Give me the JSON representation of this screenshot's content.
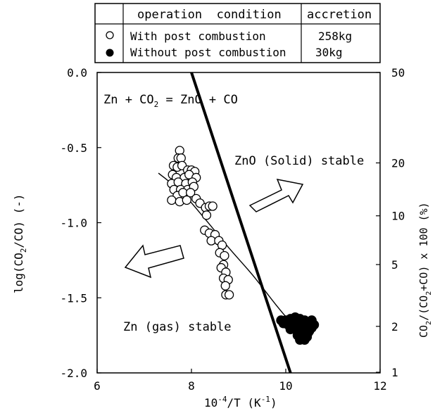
{
  "chart_data": {
    "type": "scatter",
    "title": "",
    "legend_table": {
      "headers": [
        "operation  condition",
        "accretion"
      ],
      "rows": [
        {
          "marker": "open-circle",
          "condition": "With post combustion",
          "accretion": "258kg"
        },
        {
          "marker": "filled-circle",
          "condition": "Without post combustion",
          "accretion": "30kg"
        }
      ]
    },
    "x_axis": {
      "label_base": "10",
      "label_exp": "-4",
      "label_mid": "/T (K",
      "label_exp2": "-1",
      "label_end": ")",
      "range": [
        6,
        12
      ],
      "ticks": [
        "6",
        "8",
        "10",
        "12"
      ]
    },
    "y_axis_left": {
      "label_pre": "log(CO",
      "label_sub": "2",
      "label_post": "/CO) (-)",
      "range": [
        -2.0,
        0.0
      ],
      "ticks": [
        "0.0",
        "-0.5",
        "-1.0",
        "-1.5",
        "-2.0"
      ]
    },
    "y_axis_right": {
      "label_pre": "CO",
      "label_sub1": "2",
      "label_mid": "/(CO",
      "label_sub2": "2",
      "label_post": "+CO) x 100 (%)",
      "ticks": [
        {
          "label": "50",
          "value": 50
        },
        {
          "label": "20",
          "value": 20
        },
        {
          "label": "10",
          "value": 10
        },
        {
          "label": "5",
          "value": 5
        },
        {
          "label": "2",
          "value": 2
        },
        {
          "label": "1",
          "value": 1
        }
      ]
    },
    "equilibrium_line": {
      "label_pre": "Zn + CO",
      "label_sub": "2",
      "label_post": " = ZnO + CO",
      "points": [
        [
          8.0,
          0.0
        ],
        [
          10.1,
          -2.0
        ]
      ]
    },
    "trend_curve": [
      [
        7.3,
        -0.67
      ],
      [
        7.8,
        -0.8
      ],
      [
        8.3,
        -0.98
      ],
      [
        8.8,
        -1.17
      ],
      [
        9.3,
        -1.35
      ],
      [
        9.8,
        -1.55
      ],
      [
        10.2,
        -1.7
      ]
    ],
    "region_labels": {
      "solid": "ZnO (Solid) stable",
      "gas": "Zn (gas) stable"
    },
    "series": [
      {
        "name": "With post combustion",
        "marker": "open-circle",
        "points": [
          [
            7.75,
            -0.52
          ],
          [
            7.72,
            -0.57
          ],
          [
            7.78,
            -0.57
          ],
          [
            7.62,
            -0.62
          ],
          [
            7.7,
            -0.63
          ],
          [
            7.8,
            -0.62
          ],
          [
            7.92,
            -0.65
          ],
          [
            8.0,
            -0.65
          ],
          [
            8.07,
            -0.66
          ],
          [
            7.6,
            -0.68
          ],
          [
            7.68,
            -0.7
          ],
          [
            7.85,
            -0.7
          ],
          [
            7.95,
            -0.68
          ],
          [
            8.1,
            -0.7
          ],
          [
            7.58,
            -0.74
          ],
          [
            7.72,
            -0.73
          ],
          [
            7.88,
            -0.74
          ],
          [
            8.02,
            -0.73
          ],
          [
            7.63,
            -0.78
          ],
          [
            7.77,
            -0.78
          ],
          [
            7.92,
            -0.78
          ],
          [
            8.05,
            -0.76
          ],
          [
            7.7,
            -0.82
          ],
          [
            7.82,
            -0.8
          ],
          [
            7.98,
            -0.8
          ],
          [
            7.58,
            -0.85
          ],
          [
            7.75,
            -0.86
          ],
          [
            7.9,
            -0.85
          ],
          [
            8.1,
            -0.84
          ],
          [
            8.18,
            -0.87
          ],
          [
            8.3,
            -0.9
          ],
          [
            8.38,
            -0.89
          ],
          [
            8.45,
            -0.89
          ],
          [
            8.32,
            -0.95
          ],
          [
            8.28,
            -1.05
          ],
          [
            8.38,
            -1.07
          ],
          [
            8.5,
            -1.08
          ],
          [
            8.42,
            -1.12
          ],
          [
            8.58,
            -1.12
          ],
          [
            8.65,
            -1.15
          ],
          [
            8.6,
            -1.2
          ],
          [
            8.7,
            -1.22
          ],
          [
            8.68,
            -1.28
          ],
          [
            8.63,
            -1.3
          ],
          [
            8.73,
            -1.33
          ],
          [
            8.68,
            -1.37
          ],
          [
            8.78,
            -1.38
          ],
          [
            8.72,
            -1.42
          ],
          [
            8.73,
            -1.48
          ],
          [
            8.8,
            -1.48
          ]
        ]
      },
      {
        "name": "Without post combustion",
        "marker": "filled-circle",
        "points": [
          [
            9.9,
            -1.65
          ],
          [
            10.0,
            -1.65
          ],
          [
            10.1,
            -1.64
          ],
          [
            10.2,
            -1.63
          ],
          [
            10.3,
            -1.64
          ],
          [
            10.4,
            -1.65
          ],
          [
            10.5,
            -1.66
          ],
          [
            10.55,
            -1.65
          ],
          [
            10.05,
            -1.68
          ],
          [
            10.15,
            -1.67
          ],
          [
            10.25,
            -1.68
          ],
          [
            10.35,
            -1.67
          ],
          [
            10.45,
            -1.69
          ],
          [
            9.95,
            -1.67
          ],
          [
            10.1,
            -1.71
          ],
          [
            10.2,
            -1.7
          ],
          [
            10.3,
            -1.72
          ],
          [
            10.4,
            -1.71
          ],
          [
            10.5,
            -1.72
          ],
          [
            10.25,
            -1.75
          ],
          [
            10.35,
            -1.74
          ],
          [
            10.45,
            -1.76
          ],
          [
            10.3,
            -1.78
          ],
          [
            10.4,
            -1.78
          ],
          [
            10.55,
            -1.7
          ],
          [
            10.6,
            -1.68
          ],
          [
            10.0,
            -1.66
          ],
          [
            10.22,
            -1.64
          ],
          [
            10.38,
            -1.7
          ],
          [
            10.48,
            -1.73
          ]
        ]
      }
    ]
  }
}
